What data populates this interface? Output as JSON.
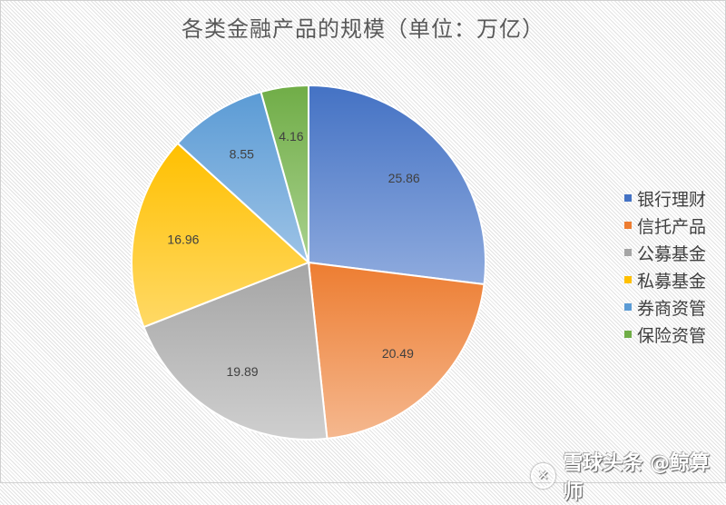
{
  "title": "各类金融产品的规模（单位：万亿）",
  "chart_data": {
    "type": "pie",
    "title": "各类金融产品的规模（单位：万亿）",
    "categories": [
      "银行理财",
      "信托产品",
      "公募基金",
      "私募基金",
      "券商资管",
      "保险资管"
    ],
    "values": [
      25.86,
      20.49,
      19.89,
      16.96,
      8.55,
      4.16
    ],
    "labels": [
      "25.86",
      "20.49",
      "19.89",
      "16.96",
      "8.55",
      "4.16"
    ],
    "colors": [
      "#4472c4",
      "#ed7d31",
      "#a5a5a5",
      "#ffc000",
      "#5b9bd5",
      "#70ad47"
    ],
    "start_angle": "12 o'clock, clockwise",
    "legend_position": "right"
  },
  "legend": {
    "items": [
      {
        "label": "银行理财",
        "color": "#4472c4"
      },
      {
        "label": "信托产品",
        "color": "#ed7d31"
      },
      {
        "label": "公募基金",
        "color": "#a5a5a5"
      },
      {
        "label": "私募基金",
        "color": "#ffc000"
      },
      {
        "label": "券商资管",
        "color": "#5b9bd5"
      },
      {
        "label": "保险资管",
        "color": "#70ad47"
      }
    ]
  },
  "watermark": {
    "text": "雪球头条 @鲸算师",
    "logo": "✕"
  }
}
